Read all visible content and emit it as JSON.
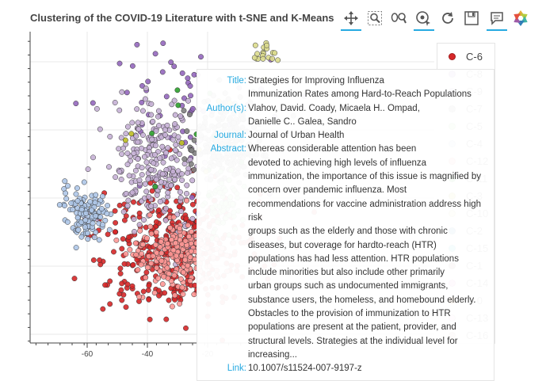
{
  "title": "Clustering of the COVID-19 Literature with t-SNE and K-Means",
  "toolbar": {
    "tools": [
      {
        "icon": "pan-icon",
        "active": true
      },
      {
        "icon": "box-zoom-icon",
        "active": false
      },
      {
        "icon": "wheel-zoom-icon",
        "active": false
      },
      {
        "icon": "tap-icon",
        "active": true
      },
      {
        "icon": "reset-icon",
        "active": false
      },
      {
        "icon": "save-icon",
        "active": false
      },
      {
        "icon": "hover-icon",
        "active": true
      },
      {
        "icon": "bokeh-logo",
        "active": false
      }
    ]
  },
  "tooltip": {
    "title_label": "Title:",
    "title": "Strategies for Improving Influenza\nImmunization Rates among Hard-to-Reach Populations",
    "authors_label": "Author(s):",
    "authors": "Vlahov, David. Coady, Micaela H.. Ompad,\nDanielle C.. Galea, Sandro",
    "journal_label": "Journal:",
    "journal": "Journal of Urban Health",
    "abstract_label": "Abstract:",
    "abstract": "Whereas considerable attention has been\ndevoted to achieving high levels of influenza\nimmunization, the importance of this issue is magnified by\nconcern over pandemic influenza. Most\nrecommendations for vaccine administration address high\nrisk\ngroups such as the elderly and those with chronic\ndiseases, but coverage for hardto-reach (HTR)\npopulations has had less attention. HTR populations\ninclude minorities but also include other primarily\nurban groups such as undocumented immigrants,\nsubstance users, the homeless, and homebound elderly.\nObstacles to the provision of immunization to HTR\npopulations are present at the patient, provider, and\nstructural levels. Strategies at the individual level for\nincreasing...",
    "link_label": "Link:",
    "link": "10.1007/s11524-007-9197-z"
  },
  "chart_data": {
    "type": "scatter",
    "title": "Clustering of the COVID-19 Literature with t-SNE and K-Means",
    "xlabel": "",
    "ylabel": "",
    "x_ticks": [
      -60,
      -40,
      -20
    ],
    "xlim": [
      -77,
      0
    ],
    "grid": true,
    "legend_position": "top-right",
    "legend": [
      {
        "label": "C-6",
        "color": "#d62728"
      },
      {
        "label": "C-8",
        "color": "#9467bd"
      },
      {
        "label": "C-9",
        "color": "#c5b0d5"
      },
      {
        "label": "C-7",
        "color": "#7f7f7f"
      },
      {
        "label": "C-5",
        "color": "#98df8a"
      },
      {
        "label": "C-4",
        "color": "#aec7e8"
      },
      {
        "label": "C-12",
        "color": "#ff9896"
      },
      {
        "label": "C-11",
        "color": "#2ca02c"
      },
      {
        "label": "C-3",
        "color": "#bcbd22"
      },
      {
        "label": "C-10",
        "color": "#dbdb8d"
      },
      {
        "label": "C-2",
        "color": "#1f77b4"
      },
      {
        "label": "C-15",
        "color": "#17becf"
      },
      {
        "label": "C-1",
        "color": "#8c564b"
      },
      {
        "label": "C-14",
        "color": "#e377c2"
      },
      {
        "label": "C-0",
        "color": "#ff7f0e"
      },
      {
        "label": "C-13",
        "color": "#f7b6d2"
      },
      {
        "label": "C-16",
        "color": "#c49c94"
      }
    ],
    "series": [
      {
        "name": "C-6",
        "color": "#d62728",
        "region": {
          "cx": -30,
          "cy": -15,
          "sx": 13,
          "sy": 10
        },
        "n": 380
      },
      {
        "name": "C-8",
        "color": "#9467bd",
        "region": {
          "cx": -25,
          "cy": 25,
          "sx": 16,
          "sy": 16
        },
        "n": 60
      },
      {
        "name": "C-9",
        "color": "#c5b0d5",
        "region": {
          "cx": -38,
          "cy": 10,
          "sx": 8,
          "sy": 9
        },
        "n": 260
      },
      {
        "name": "C-7",
        "color": "#7f7f7f",
        "region": {
          "cx": -14,
          "cy": 17,
          "sx": 6,
          "sy": 6
        },
        "n": 220
      },
      {
        "name": "C-5",
        "color": "#98df8a",
        "region": {
          "cx": -15,
          "cy": -2,
          "sx": 3,
          "sy": 4
        },
        "n": 70
      },
      {
        "name": "C-4",
        "color": "#aec7e8",
        "region": {
          "cx": -60,
          "cy": -4,
          "sx": 3.5,
          "sy": 4
        },
        "n": 120
      },
      {
        "name": "C-12",
        "color": "#ff9896",
        "region": {
          "cx": -30,
          "cy": -17,
          "sx": 7,
          "sy": 5
        },
        "n": 240
      },
      {
        "name": "C-11",
        "color": "#2ca02c",
        "region": {
          "cx": -20,
          "cy": 12,
          "sx": 10,
          "sy": 10
        },
        "n": 10
      },
      {
        "name": "C-3",
        "color": "#bcbd22",
        "region": {
          "cx": -20,
          "cy": 20,
          "sx": 12,
          "sy": 10
        },
        "n": 8
      },
      {
        "name": "C-10",
        "color": "#dbdb8d",
        "region": {
          "cx": -2,
          "cy": 42,
          "sx": 3,
          "sy": 1.5
        },
        "n": 18
      }
    ]
  }
}
